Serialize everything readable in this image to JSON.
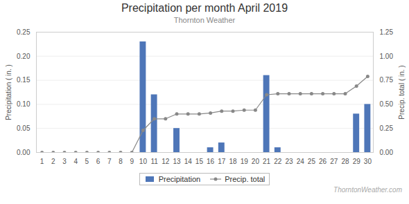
{
  "chart_data": {
    "type": "bar",
    "title": "Precipitation per month April 2019",
    "subtitle": "Thornton Weather",
    "annotations": [
      "ThorntonWeather.com"
    ],
    "ylabel": "Precipitation ( in. )",
    "y2label": "Precip. total ( in. )",
    "x": [
      1,
      2,
      3,
      4,
      5,
      6,
      7,
      8,
      9,
      10,
      11,
      12,
      13,
      14,
      15,
      16,
      17,
      18,
      19,
      20,
      21,
      22,
      23,
      24,
      25,
      26,
      27,
      28,
      29,
      30
    ],
    "xlim": [
      0.5,
      30.5
    ],
    "xticks": [
      1,
      2,
      3,
      4,
      5,
      6,
      7,
      8,
      9,
      10,
      11,
      12,
      13,
      14,
      15,
      16,
      17,
      18,
      19,
      20,
      21,
      22,
      23,
      24,
      25,
      26,
      27,
      28,
      29,
      30
    ],
    "ylim": [
      0,
      0.25
    ],
    "yticks": [
      {
        "value": 0,
        "label": "0.00"
      },
      0.05,
      {
        "value": 0.1,
        "label": "0.10"
      },
      0.15,
      {
        "value": 0.2,
        "label": "0.20"
      },
      0.25
    ],
    "y2lim": [
      0,
      1.25
    ],
    "y2ticks": [
      {
        "value": 0,
        "label": "0.00"
      },
      0.25,
      {
        "value": 0.5,
        "label": "0.50"
      },
      0.75,
      {
        "value": 1.0,
        "label": "1.00"
      },
      1.25
    ],
    "grid": true,
    "legend": "bottom",
    "series": [
      {
        "name": "Precipitation",
        "type": "bar",
        "color": "#4e76b8",
        "values": [
          0.0,
          0.0,
          0.0,
          0.0,
          0.0,
          0.0,
          0.0,
          0.0,
          0.0,
          0.23,
          0.12,
          0.0,
          0.05,
          0.0,
          0.0,
          0.01,
          0.02,
          0.0,
          0.0,
          0.0,
          0.16,
          0.01,
          0.0,
          0.0,
          0.0,
          0.0,
          0.0,
          0.0,
          0.08,
          0.1
        ]
      },
      {
        "name": "Precip. total",
        "type": "line",
        "color": "#888888",
        "marker": "circle",
        "axis": "y2",
        "values": [
          0.0,
          0.0,
          0.0,
          0.0,
          0.0,
          0.0,
          0.0,
          0.0,
          0.0,
          0.23,
          0.35,
          0.35,
          0.4,
          0.4,
          0.4,
          0.41,
          0.43,
          0.43,
          0.44,
          0.44,
          0.6,
          0.61,
          0.61,
          0.61,
          0.61,
          0.61,
          0.61,
          0.61,
          0.69,
          0.79
        ]
      }
    ]
  }
}
